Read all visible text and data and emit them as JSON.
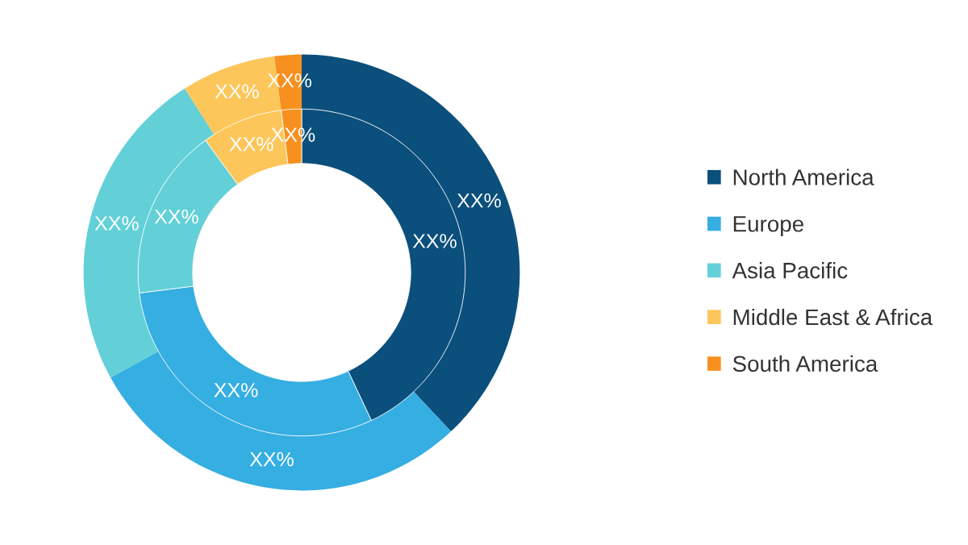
{
  "chart_data": {
    "type": "donut",
    "categories": [
      "North America",
      "Europe",
      "Asia Pacific",
      "Middle East & Africa",
      "South America"
    ],
    "colors": [
      "#0b4f7c",
      "#35aee2",
      "#63d0d8",
      "#fdc65a",
      "#f7901e"
    ],
    "series": [
      {
        "values": [
          38,
          29,
          24,
          7,
          2
        ],
        "value_labels": [
          "XX%",
          "XX%",
          "XX%",
          "XX%",
          "XX%"
        ]
      },
      {
        "values": [
          43,
          30,
          17,
          8,
          2
        ],
        "value_labels": [
          "XX%",
          "XX%",
          "XX%",
          "XX%",
          "XX%"
        ]
      }
    ],
    "legend": "right"
  }
}
